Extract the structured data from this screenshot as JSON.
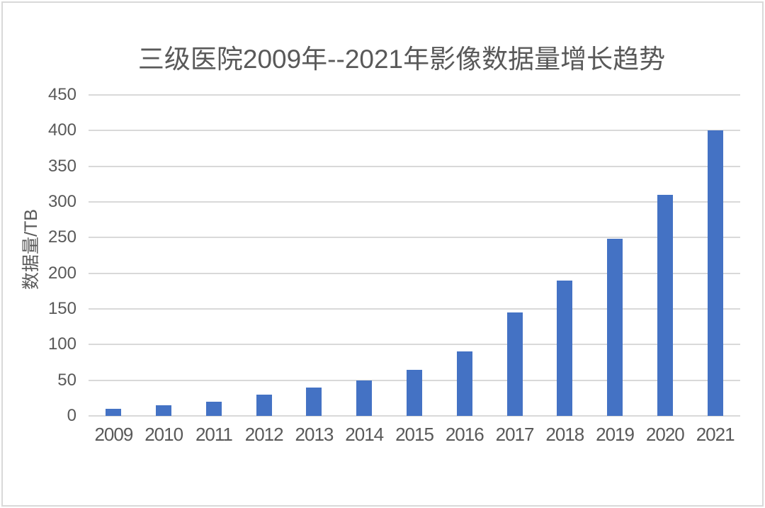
{
  "chart_data": {
    "type": "bar",
    "title": "三级医院2009年--2021年影像数据量增长趋势",
    "categories": [
      "2009",
      "2010",
      "2011",
      "2012",
      "2013",
      "2014",
      "2015",
      "2016",
      "2017",
      "2018",
      "2019",
      "2020",
      "2021"
    ],
    "values": [
      10,
      15,
      20,
      30,
      40,
      50,
      65,
      90,
      145,
      190,
      248,
      310,
      400
    ],
    "xlabel": "",
    "ylabel": "数据量/TB",
    "ylim": [
      0,
      450
    ],
    "ytick_step": 50,
    "grid": true,
    "legend": false,
    "bar_color": "#4472C4",
    "gridline_color": "#D9D9D9",
    "text_color": "#595959",
    "border_color": "#D9D9D9"
  }
}
